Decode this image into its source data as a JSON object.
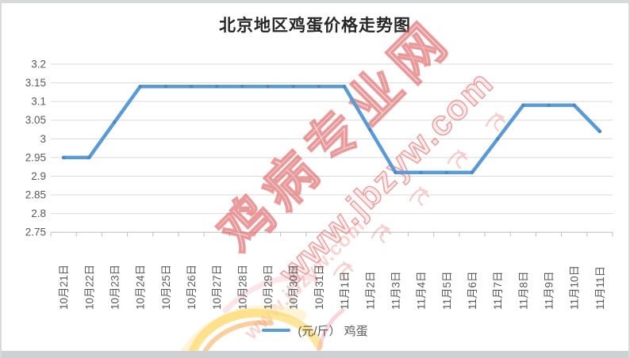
{
  "title": "北京地区鸡蛋价格走势图",
  "legend": {
    "label": "(元/斤） 鸡蛋"
  },
  "watermark": {
    "site_name": "鸡病专业网",
    "url_large": "www.jbzyw.com",
    "url_small": "www.jbzyw.com"
  },
  "colors": {
    "line": "#5B9BD5",
    "marker": "#4E83BF",
    "grid": "#D9D9D9",
    "axis": "#BDBDBD",
    "tick_label": "#595959",
    "title_text": "#262626",
    "watermark_red": "#DB6A6A",
    "logo_yellow": "#FFD24D",
    "logo_orange": "#F59D3D",
    "logo_cream": "#FFEDBE",
    "logo_pink": "#F2A9BA"
  },
  "chart_data": {
    "type": "line",
    "title": "北京地区鸡蛋价格走势图",
    "categories": [
      "10月21日",
      "10月22日",
      "10月23日",
      "10月24日",
      "10月25日",
      "10月26日",
      "10月27日",
      "10月28日",
      "10月29日",
      "10月30日",
      "10月31日",
      "11月1日",
      "11月2日",
      "11月3日",
      "11月4日",
      "11月5日",
      "11月6日",
      "11月7日",
      "11月8日",
      "11月9日",
      "11月10日",
      "11月11日"
    ],
    "series": [
      {
        "name": "(元/斤） 鸡蛋",
        "values": [
          2.95,
          2.95,
          3.045,
          3.14,
          3.14,
          3.14,
          3.14,
          3.14,
          3.14,
          3.14,
          3.14,
          3.14,
          3.025,
          2.91,
          2.91,
          2.91,
          2.91,
          3.0,
          3.09,
          3.09,
          3.09,
          3.02
        ]
      }
    ],
    "ylim": [
      2.75,
      3.2
    ],
    "ytick_step": 0.05,
    "ytick_labels": [
      "3.2",
      "3.15",
      "3.1",
      "3.05",
      "3",
      "2.95",
      "2.9",
      "2.85",
      "2.8",
      "2.75"
    ],
    "grid": true,
    "legend_position": "bottom",
    "x_label_rotation": -90
  }
}
